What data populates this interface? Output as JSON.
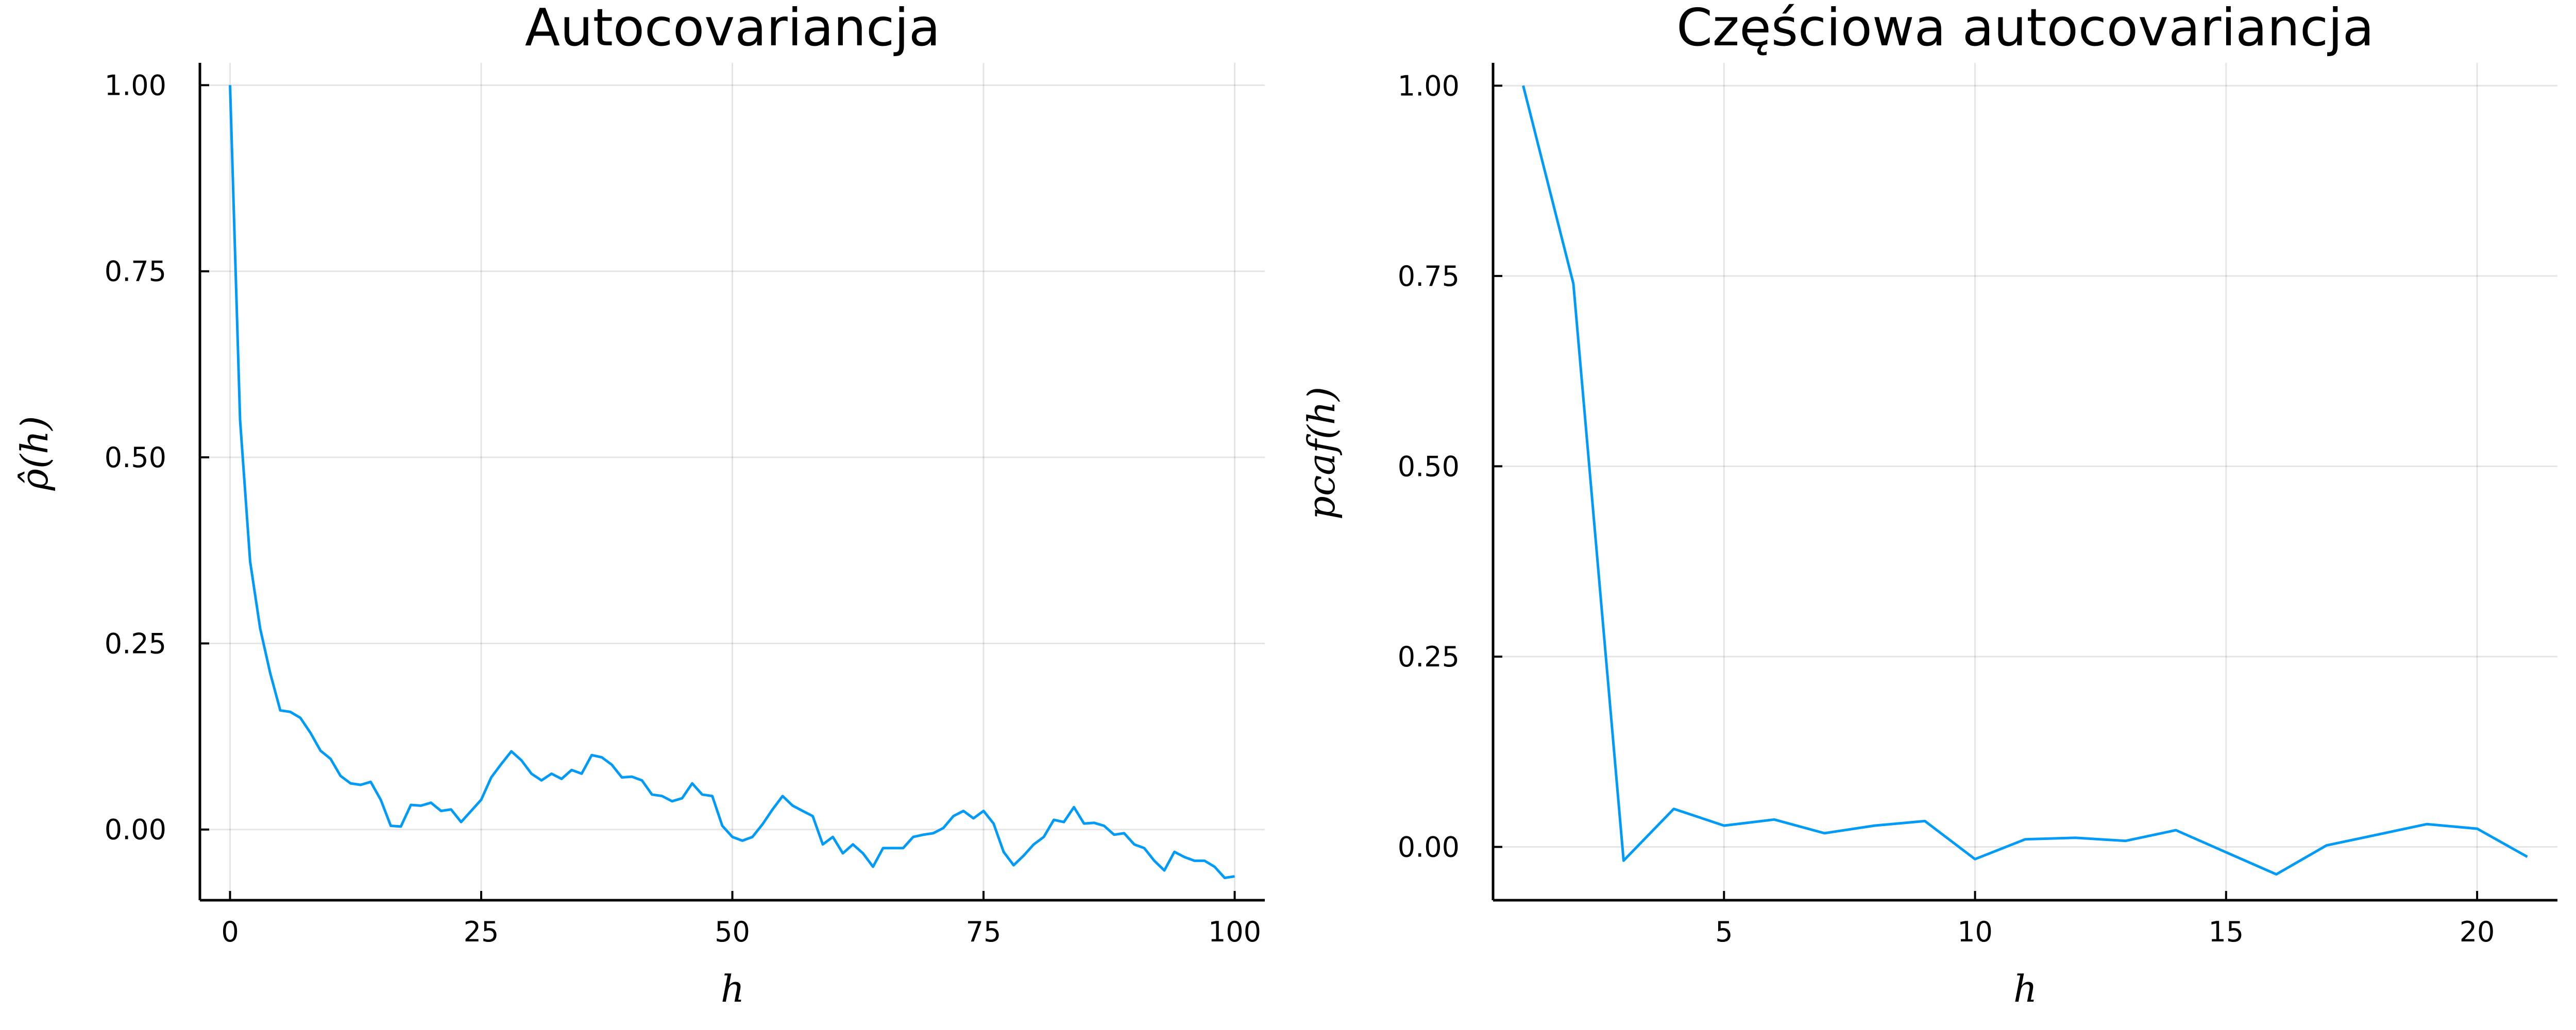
{
  "colors": {
    "series": "#009af9"
  },
  "chart_data": [
    {
      "type": "line",
      "title": "Autocovariancja",
      "xlabel": "h",
      "ylabel": "ρ̂(h)",
      "xlim": [
        -3,
        103
      ],
      "ylim": [
        -0.095,
        1.03
      ],
      "xticks": [
        0,
        25,
        50,
        75,
        100
      ],
      "xtick_labels": [
        "0",
        "25",
        "50",
        "75",
        "100"
      ],
      "yticks": [
        0,
        0.25,
        0.5,
        0.75,
        1
      ],
      "ytick_labels": [
        "0.00",
        "0.25",
        "0.50",
        "0.75",
        "1.00"
      ],
      "grid": true,
      "series": [
        {
          "x": [
            0,
            1,
            2,
            3,
            4,
            5,
            6,
            7,
            8,
            9,
            10,
            11,
            12,
            13,
            14,
            15,
            16,
            17,
            18,
            19,
            20,
            21,
            22,
            23,
            24,
            25,
            26,
            27,
            28,
            29,
            30,
            31,
            32,
            33,
            34,
            35,
            36,
            37,
            38,
            39,
            40,
            41,
            42,
            43,
            44,
            45,
            46,
            47,
            48,
            49,
            50,
            51,
            52,
            53,
            54,
            55,
            56,
            57,
            58,
            59,
            60,
            61,
            62,
            63,
            64,
            65,
            66,
            67,
            68,
            69,
            70,
            71,
            72,
            73,
            74,
            75,
            76,
            77,
            78,
            79,
            80,
            81,
            82,
            83,
            84,
            85,
            86,
            87,
            88,
            89,
            90,
            91,
            92,
            93,
            94,
            95,
            96,
            97,
            98,
            99,
            100
          ],
          "y": [
            1.0,
            0.55,
            0.36,
            0.27,
            0.21,
            0.16,
            0.158,
            0.15,
            0.13,
            0.106,
            0.095,
            0.072,
            0.062,
            0.06,
            0.064,
            0.04,
            0.005,
            0.004,
            0.033,
            0.032,
            0.036,
            0.025,
            0.027,
            0.01,
            0.025,
            0.04,
            0.07,
            0.088,
            0.105,
            0.093,
            0.075,
            0.066,
            0.075,
            0.068,
            0.08,
            0.075,
            0.1,
            0.097,
            0.087,
            0.07,
            0.071,
            0.066,
            0.047,
            0.045,
            0.038,
            0.042,
            0.062,
            0.047,
            0.045,
            0.005,
            -0.01,
            -0.015,
            -0.01,
            0.007,
            0.027,
            0.045,
            0.032,
            0.025,
            0.018,
            -0.02,
            -0.01,
            -0.032,
            -0.02,
            -0.032,
            -0.05,
            -0.025,
            -0.025,
            -0.025,
            -0.01,
            -0.007,
            -0.005,
            0.002,
            0.018,
            0.025,
            0.015,
            0.025,
            0.008,
            -0.03,
            -0.048,
            -0.035,
            -0.02,
            -0.01,
            0.013,
            0.01,
            0.03,
            0.008,
            0.009,
            0.005,
            -0.007,
            -0.005,
            -0.02,
            -0.025,
            -0.042,
            -0.055,
            -0.03,
            -0.037,
            -0.042,
            -0.042,
            -0.05,
            -0.065,
            -0.063
          ]
        }
      ]
    },
    {
      "type": "line",
      "title": "Częściowa autocovariancja",
      "xlabel": "h",
      "ylabel": "pcaf(h)",
      "xlim": [
        0.4,
        21.6
      ],
      "ylim": [
        -0.07,
        1.03
      ],
      "xticks": [
        5,
        10,
        15,
        20
      ],
      "xtick_labels": [
        "5",
        "10",
        "15",
        "20"
      ],
      "yticks": [
        0,
        0.25,
        0.5,
        0.75,
        1
      ],
      "ytick_labels": [
        "0.00",
        "0.25",
        "0.50",
        "0.75",
        "1.00"
      ],
      "grid": true,
      "series": [
        {
          "x": [
            1,
            2,
            3,
            4,
            5,
            6,
            7,
            8,
            9,
            10,
            11,
            12,
            13,
            14,
            15,
            16,
            17,
            18,
            19,
            20,
            21
          ],
          "y": [
            1.0,
            0.74,
            -0.018,
            0.05,
            0.028,
            0.036,
            0.018,
            0.028,
            0.034,
            -0.016,
            0.01,
            0.012,
            0.008,
            0.022,
            -0.007,
            -0.036,
            0.002,
            0.016,
            0.03,
            0.024,
            -0.013
          ]
        }
      ]
    }
  ]
}
